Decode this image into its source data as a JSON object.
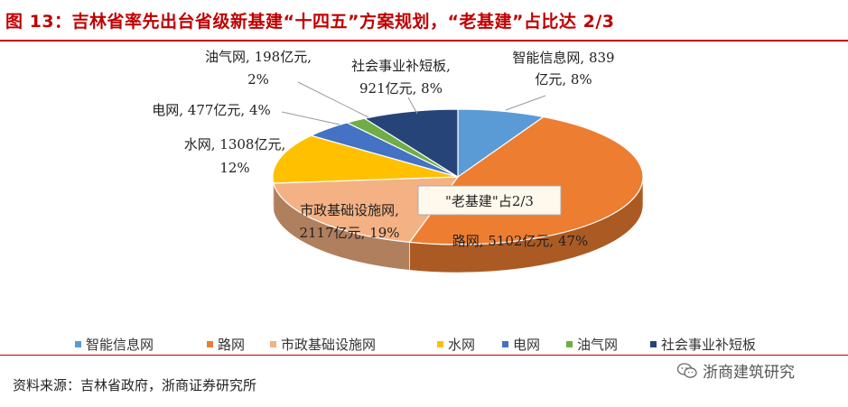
{
  "title": "图 13：吉林省率先出台省级新基建“十四五”方案规划，“老基建”占比达 2/3",
  "source": "资料来源：吉林省政府，浙商证券研究所",
  "watermark": "浙商建筑研究",
  "watermark_icon": "wechat-icon",
  "callout": "\"老基建\"占2/3",
  "chart_data": {
    "type": "pie",
    "unit": "亿元",
    "legend_position": "bottom",
    "slices": [
      {
        "name": "智能信息网",
        "value": 839,
        "percent": 8,
        "color": "#5b9bd5",
        "label_lines": [
          "智能信息网, 839",
          "亿元, 8%"
        ]
      },
      {
        "name": "路网",
        "value": 5102,
        "percent": 47,
        "color": "#ed7d31",
        "label_lines": [
          "路网, 5102亿元, 47%"
        ]
      },
      {
        "name": "市政基础设施网",
        "value": 2117,
        "percent": 19,
        "color": "#f4b183",
        "label_lines": [
          "市政基础设施网,",
          "2117亿元, 19%"
        ]
      },
      {
        "name": "水网",
        "value": 1308,
        "percent": 12,
        "color": "#ffc000",
        "label_lines": [
          "水网, 1308亿元,",
          "12%"
        ]
      },
      {
        "name": "电网",
        "value": 477,
        "percent": 4,
        "color": "#4472c4",
        "label_lines": [
          "电网, 477亿元, 4%"
        ]
      },
      {
        "name": "油气网",
        "value": 198,
        "percent": 2,
        "color": "#70ad47",
        "label_lines": [
          "油气网, 198亿元,",
          "2%"
        ]
      },
      {
        "name": "社会事业补短板",
        "value": 921,
        "percent": 8,
        "color": "#264478",
        "label_lines": [
          "社会事业补短板,",
          "921亿元, 8%"
        ]
      }
    ]
  }
}
